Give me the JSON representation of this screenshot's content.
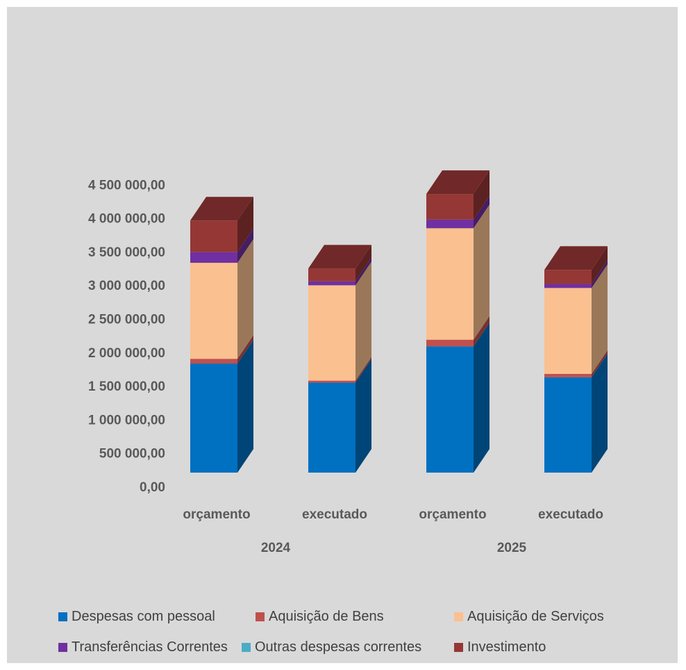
{
  "chart_data": {
    "type": "bar",
    "stacked": true,
    "three_d": true,
    "categories": [
      "orçamento",
      "executado",
      "orçamento",
      "executado"
    ],
    "groups": [
      {
        "label": "2024",
        "categories": [
          0,
          1
        ]
      },
      {
        "label": "2025",
        "categories": [
          2,
          3
        ]
      }
    ],
    "ylim": [
      0,
      4500000
    ],
    "yticks": [
      "0,00",
      "500 000,00",
      "1 000 000,00",
      "1 500 000,00",
      "2 000 000,00",
      "2 500 000,00",
      "3 000 000,00",
      "3 500 000,00",
      "4 000 000,00",
      "4 500 000,00"
    ],
    "grid": false,
    "legend_position": "bottom",
    "series": [
      {
        "name": "Despesas com pessoal",
        "color": "#0070c0",
        "values": [
          1625000,
          1340000,
          1880000,
          1420000
        ]
      },
      {
        "name": "Aquisição de Bens",
        "color": "#c0504d",
        "values": [
          70000,
          30000,
          100000,
          50000
        ]
      },
      {
        "name": "Aquisição de Serviços",
        "color": "#fac090",
        "values": [
          1430000,
          1420000,
          1660000,
          1280000
        ]
      },
      {
        "name": "Transferências Correntes",
        "color": "#7030a0",
        "values": [
          160000,
          60000,
          130000,
          60000
        ]
      },
      {
        "name": "Outras despesas correntes",
        "color": "#4bacc6",
        "values": [
          0,
          0,
          0,
          0
        ]
      },
      {
        "name": "Investimento",
        "color": "#953735",
        "values": [
          470000,
          190000,
          380000,
          210000
        ]
      }
    ]
  },
  "legend": {
    "items": [
      {
        "label": "Despesas com pessoal",
        "color": "#0070c0"
      },
      {
        "label": "Aquisição de Bens",
        "color": "#c0504d"
      },
      {
        "label": "Aquisição de Serviços",
        "color": "#fac090"
      },
      {
        "label": "Transferências Correntes",
        "color": "#7030a0"
      },
      {
        "label": "Outras despesas correntes",
        "color": "#4bacc6"
      },
      {
        "label": "Investimento",
        "color": "#953735"
      }
    ]
  }
}
